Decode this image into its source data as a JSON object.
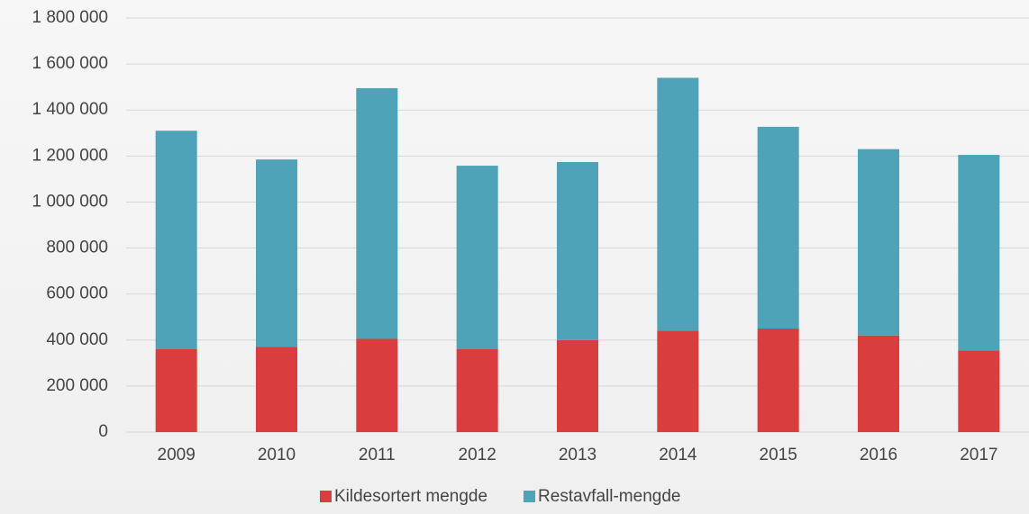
{
  "chart_data": {
    "type": "stacked_bar",
    "categories": [
      "2009",
      "2010",
      "2011",
      "2012",
      "2013",
      "2014",
      "2015",
      "2016",
      "2017"
    ],
    "series": [
      {
        "name": "Kildesortert mengde",
        "color": "#d93d3d",
        "values": [
          360000,
          370000,
          405000,
          360000,
          400000,
          440000,
          450000,
          420000,
          355000
        ]
      },
      {
        "name": "Restavfall-mengde",
        "color": "#4fa3b8",
        "values": [
          950000,
          815000,
          1090000,
          798000,
          774000,
          1100000,
          877000,
          810000,
          850000
        ]
      }
    ],
    "ylim": [
      0,
      1800000
    ],
    "yticks": [
      0,
      {
        "value": 200000,
        "label": "200 000"
      },
      {
        "value": 400000,
        "label": "400 000"
      },
      {
        "value": 600000,
        "label": "600 000"
      },
      {
        "value": 800000,
        "label": "800 000"
      },
      {
        "value": 1000000,
        "label": "1 000 000"
      },
      {
        "value": 1200000,
        "label": "1 200 000"
      },
      {
        "value": 1400000,
        "label": "1 400 000"
      },
      {
        "value": 1600000,
        "label": "1 600 000"
      },
      {
        "value": 1800000,
        "label": "1 800 000"
      }
    ],
    "grid": true,
    "legend": "bottom"
  }
}
